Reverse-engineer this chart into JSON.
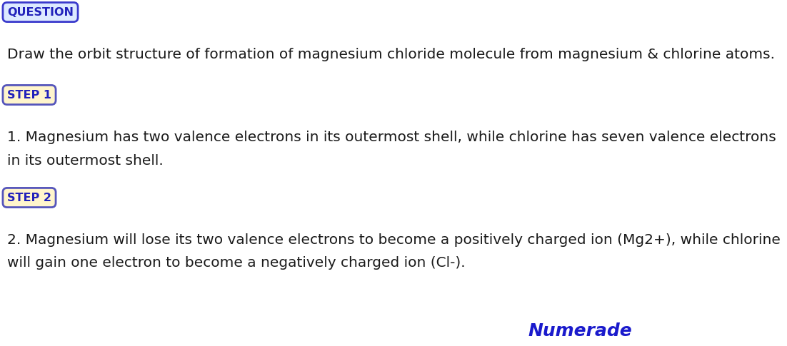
{
  "bg_color": "#ffffff",
  "question_label": "QUESTION",
  "question_box_facecolor": "#dce9ff",
  "question_box_edgecolor": "#3a3acc",
  "question_text": "Draw the orbit structure of formation of magnesium chloride molecule from magnesium & chlorine atoms.",
  "step1_label": "STEP 1",
  "step1_box_facecolor": "#fff5cc",
  "step1_box_edgecolor": "#5555bb",
  "step1_text_line1": "1. Magnesium has two valence electrons in its outermost shell, while chlorine has seven valence electrons",
  "step1_text_line2": "in its outermost shell.",
  "step2_label": "STEP 2",
  "step2_box_facecolor": "#fff5cc",
  "step2_box_edgecolor": "#5555bb",
  "step2_text_line1": "2. Magnesium will lose its two valence electrons to become a positively charged ion (Mg2+), while chlorine",
  "step2_text_line2": "will gain one electron to become a negatively charged ion (Cl-).",
  "label_color": "#2222bb",
  "body_text_color": "#1a1a1a",
  "numerade_text": "Numerade",
  "numerade_color": "#1a1acc",
  "body_fontsize": 14.5,
  "label_fontsize": 11.5,
  "numerade_fontsize": 18
}
